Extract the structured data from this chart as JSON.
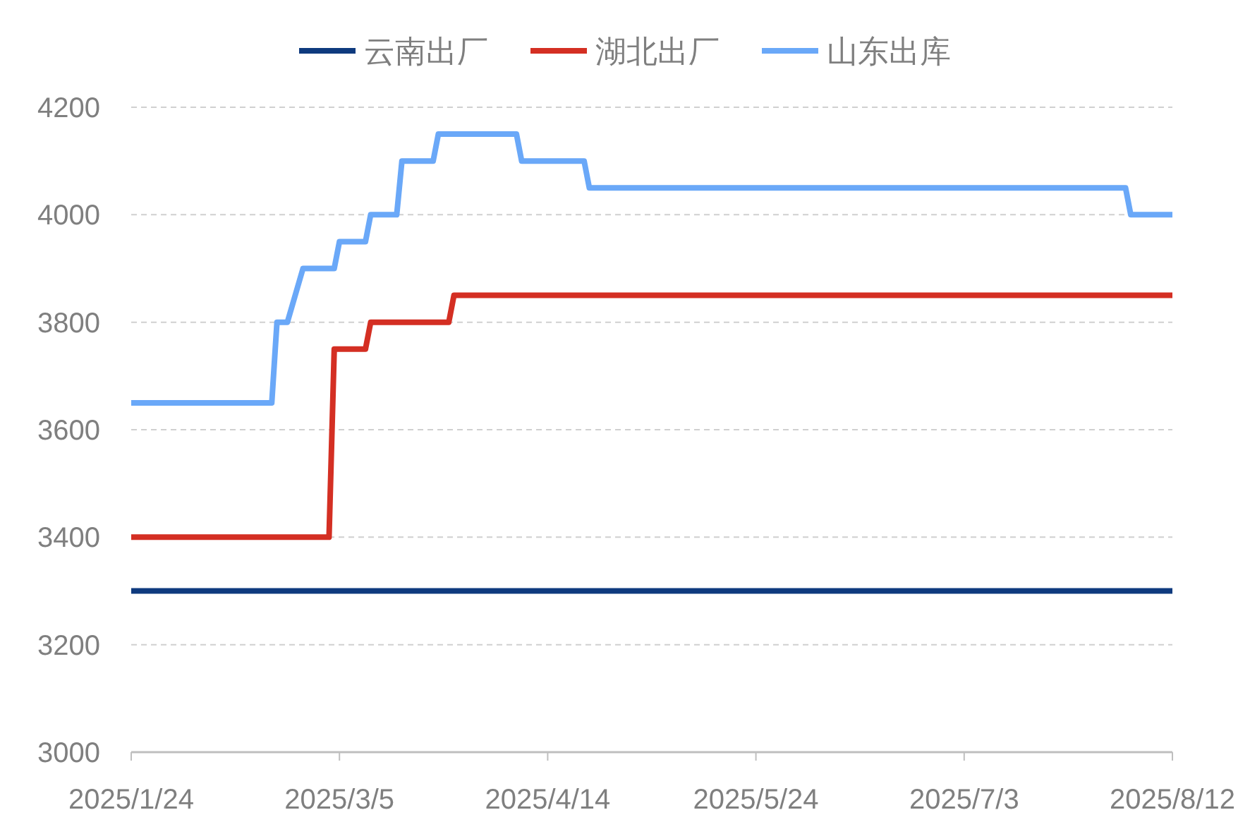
{
  "chart_data": {
    "type": "line",
    "xlim": [
      "2025-01-24",
      "2025-08-12"
    ],
    "xticks": [
      {
        "value": "2025-01-24",
        "label": "2025/1/24"
      },
      {
        "value": "2025-03-05",
        "label": "2025/3/5"
      },
      {
        "value": "2025-04-14",
        "label": "2025/4/14"
      },
      {
        "value": "2025-05-24",
        "label": "2025/5/24"
      },
      {
        "value": "2025-07-03",
        "label": "2025/7/3"
      },
      {
        "value": "2025-08-12",
        "label": "2025/8/12"
      }
    ],
    "ylim": [
      3000,
      4200
    ],
    "yticks": [
      3000,
      3200,
      3400,
      3600,
      3800,
      4000,
      4200
    ],
    "grid": "y",
    "legend": "top",
    "series": [
      {
        "name": "云南出厂",
        "color": "#0e3a7e",
        "x": [
          "2025-01-24",
          "2025-08-12"
        ],
        "values": [
          3300,
          3300
        ]
      },
      {
        "name": "湖北出厂",
        "color": "#d42f23",
        "x": [
          "2025-01-24",
          "2025-03-03",
          "2025-03-04",
          "2025-03-10",
          "2025-03-11",
          "2025-03-26",
          "2025-03-27",
          "2025-08-12"
        ],
        "values": [
          3400,
          3400,
          3750,
          3750,
          3800,
          3800,
          3850,
          3850
        ]
      },
      {
        "name": "山东出库",
        "color": "#6aa8f8",
        "x": [
          "2025-01-24",
          "2025-02-20",
          "2025-02-21",
          "2025-02-23",
          "2025-02-26",
          "2025-03-04",
          "2025-03-05",
          "2025-03-10",
          "2025-03-11",
          "2025-03-16",
          "2025-03-17",
          "2025-03-23",
          "2025-03-24",
          "2025-04-08",
          "2025-04-09",
          "2025-04-21",
          "2025-04-22",
          "2025-08-03",
          "2025-08-04",
          "2025-08-12"
        ],
        "values": [
          3650,
          3650,
          3800,
          3800,
          3900,
          3900,
          3950,
          3950,
          4000,
          4000,
          4100,
          4100,
          4150,
          4150,
          4100,
          4100,
          4050,
          4050,
          4000,
          4000
        ]
      }
    ]
  }
}
